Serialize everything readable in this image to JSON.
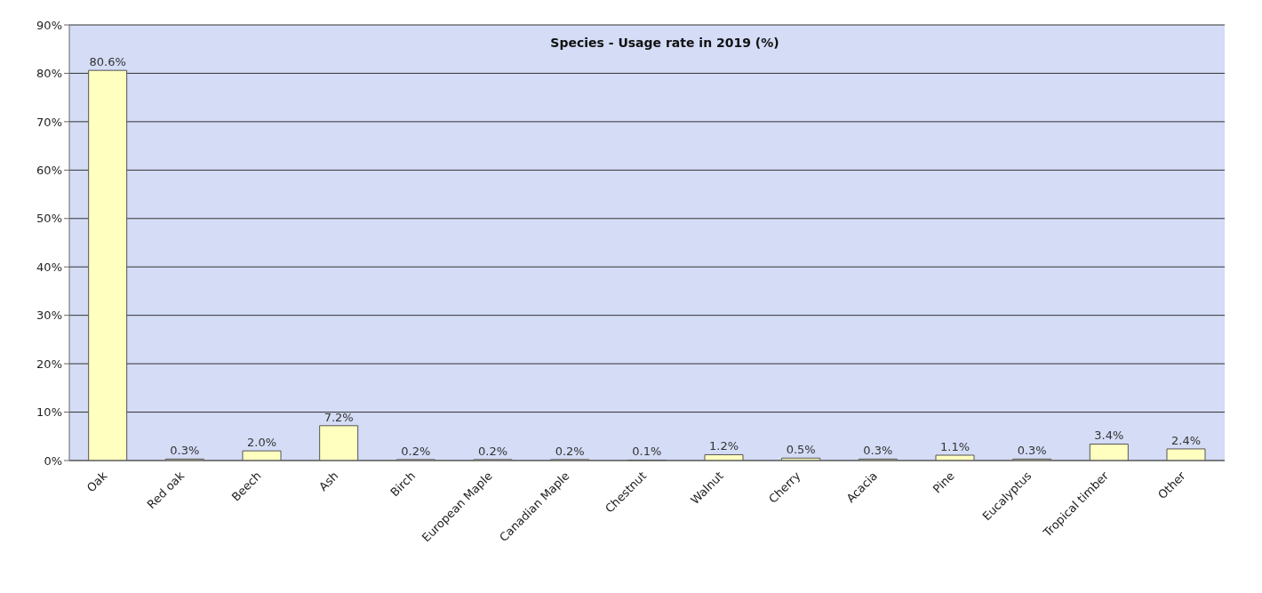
{
  "chart_data": {
    "type": "bar",
    "title": "Species - Usage rate in 2019 (%)",
    "categories": [
      "Oak",
      "Red oak",
      "Beech",
      "Ash",
      "Birch",
      "European Maple",
      "Canadian Maple",
      "Chestnut",
      "Walnut",
      "Cherry",
      "Acacia",
      "Pine",
      "Eucalyptus",
      "Tropical timber",
      "Other"
    ],
    "values": [
      80.6,
      0.3,
      2.0,
      7.2,
      0.2,
      0.2,
      0.2,
      0.1,
      1.2,
      0.5,
      0.3,
      1.1,
      0.3,
      3.4,
      2.4
    ],
    "value_labels": [
      "80.6%",
      "0.3%",
      "2.0%",
      "7.2%",
      "0.2%",
      "0.2%",
      "0.2%",
      "0.1%",
      "1.2%",
      "0.5%",
      "0.3%",
      "1.1%",
      "0.3%",
      "3.4%",
      "2.4%"
    ],
    "color": "#ffffc0",
    "ylim": [
      0,
      90
    ],
    "yticks": [
      {
        "value": 0,
        "label": "0%"
      },
      {
        "value": 10,
        "label": "10%"
      },
      {
        "value": 20,
        "label": "20%"
      },
      {
        "value": 30,
        "label": "30%"
      },
      {
        "value": 40,
        "label": "40%"
      },
      {
        "value": 50,
        "label": "50%"
      },
      {
        "value": 60,
        "label": "60%"
      },
      {
        "value": 70,
        "label": "70%"
      },
      {
        "value": 80,
        "label": "80%"
      },
      {
        "value": 90,
        "label": "90%"
      }
    ],
    "grid": "y"
  }
}
